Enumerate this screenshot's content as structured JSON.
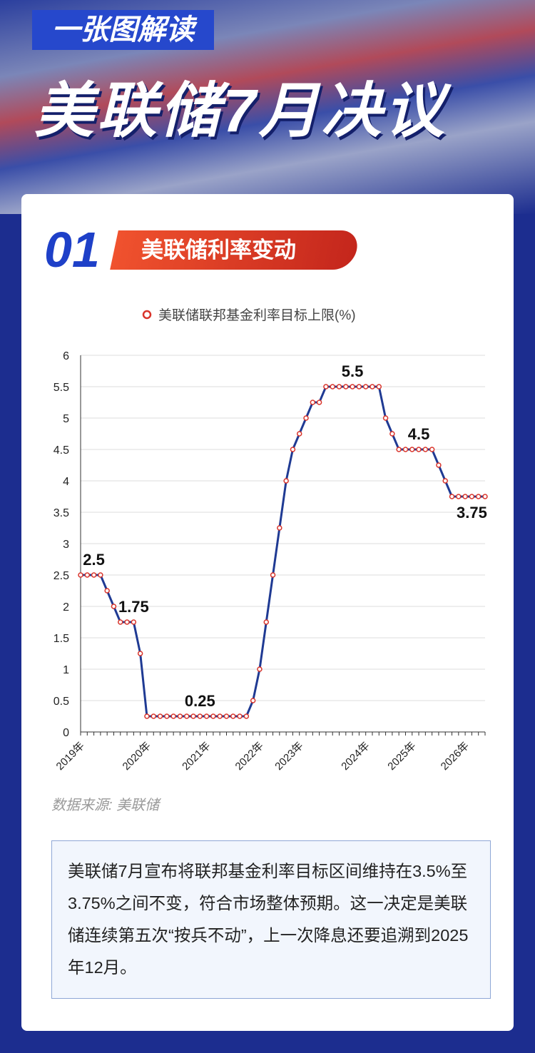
{
  "header": {
    "kicker": "一张图解读",
    "title": "美联储7月决议"
  },
  "section": {
    "number": "01",
    "title": "美联储利率变动"
  },
  "chart_data": {
    "type": "line",
    "categories": [
      "2019年",
      null,
      null,
      null,
      null,
      null,
      null,
      null,
      null,
      null,
      "2020年",
      null,
      null,
      null,
      null,
      null,
      null,
      null,
      null,
      "2021年",
      null,
      null,
      null,
      null,
      null,
      null,
      null,
      "2022年",
      null,
      null,
      null,
      null,
      null,
      "2023年",
      null,
      null,
      null,
      null,
      null,
      null,
      null,
      null,
      null,
      "2024年",
      null,
      null,
      null,
      null,
      null,
      null,
      "2025年",
      null,
      null,
      null,
      null,
      null,
      null,
      null,
      "2026年",
      null,
      null,
      null
    ],
    "series": [
      {
        "name": "美联储联邦基金利率目标上限(%)",
        "color": "#1f3a93",
        "marker_color": "#d9342b",
        "values": [
          2.5,
          2.5,
          2.5,
          2.5,
          2.25,
          2.0,
          1.75,
          1.75,
          1.75,
          1.25,
          0.25,
          0.25,
          0.25,
          0.25,
          0.25,
          0.25,
          0.25,
          0.25,
          0.25,
          0.25,
          0.25,
          0.25,
          0.25,
          0.25,
          0.25,
          0.25,
          0.5,
          1,
          1.75,
          2.5,
          3.25,
          4,
          4.5,
          4.75,
          5,
          5.25,
          5.25,
          5.5,
          5.5,
          5.5,
          5.5,
          5.5,
          5.5,
          5.5,
          5.5,
          5.5,
          5,
          4.75,
          4.5,
          4.5,
          4.5,
          4.5,
          4.5,
          4.5,
          4.25,
          4,
          3.75,
          3.75,
          3.75,
          3.75,
          3.75,
          3.75
        ],
        "value_labels": [
          null,
          null,
          "2.5",
          null,
          null,
          null,
          null,
          null,
          "1.75",
          null,
          null,
          null,
          null,
          null,
          null,
          null,
          null,
          null,
          "0.25",
          null,
          null,
          null,
          null,
          null,
          null,
          null,
          null,
          null,
          null,
          null,
          null,
          null,
          null,
          null,
          null,
          null,
          null,
          null,
          null,
          null,
          null,
          "5.5",
          null,
          null,
          null,
          null,
          null,
          null,
          null,
          null,
          null,
          "4.5",
          null,
          null,
          null,
          null,
          null,
          null,
          null,
          "3.75",
          null,
          null
        ]
      }
    ],
    "ylim": [
      0,
      6
    ],
    "yticks": [
      0,
      0.5,
      1,
      1.5,
      2,
      2.5,
      3,
      3.5,
      4,
      4.5,
      5,
      5.5,
      6
    ],
    "grid": true
  },
  "source": "数据来源: 美联储",
  "summary": "美联储7月宣布将联邦基金利率目标区间维持在3.5%至3.75%之间不变，符合市场整体预期。这一决定是美联储连续第五次“按兵不动”，上一次降息还要追溯到2025年12月。"
}
